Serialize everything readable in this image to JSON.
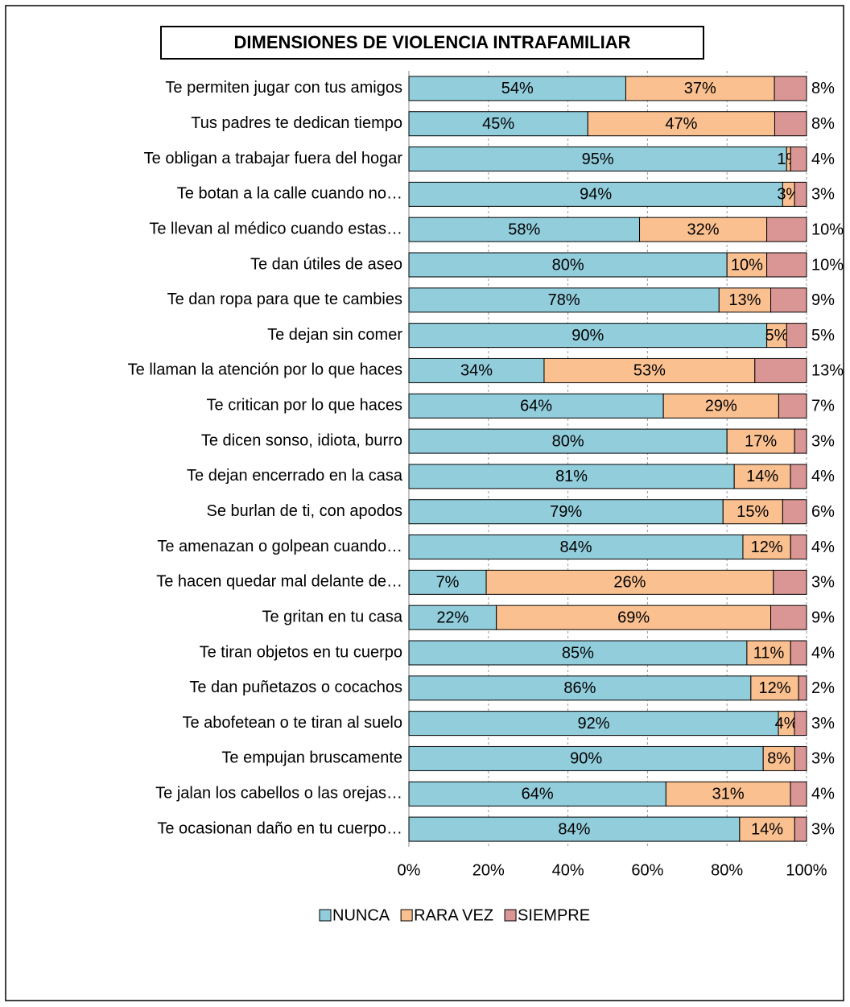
{
  "chart_data": {
    "type": "bar",
    "orientation": "horizontal",
    "stacking": "percent",
    "title": "DIMENSIONES DE VIOLENCIA INTRAFAMILIAR",
    "categories": [
      "Te permiten jugar con tus amigos",
      "Tus padres te dedican tiempo",
      "Te obligan a trabajar fuera del hogar",
      "Te botan a la calle cuando no…",
      "Te llevan al médico cuando estas…",
      "Te dan útiles de aseo",
      "Te dan ropa para que te cambies",
      "Te dejan sin comer",
      "Te llaman la atención por lo que haces",
      "Te critican por lo que haces",
      "Te dicen sonso, idiota, burro",
      "Te dejan encerrado en la casa",
      "Se burlan de ti, con apodos",
      "Te amenazan o golpean cuando…",
      "Te hacen quedar mal delante de…",
      "Te gritan en tu casa",
      "Te tiran objetos en tu cuerpo",
      "Te dan puñetazos o cocachos",
      "Te abofetean o te tiran al suelo",
      "Te empujan bruscamente",
      "Te jalan los cabellos o las orejas…",
      "Te ocasionan daño en tu cuerpo…"
    ],
    "series": [
      {
        "name": "NUNCA",
        "color": "#92cddc",
        "values": [
          54,
          45,
          95,
          94,
          58,
          80,
          78,
          90,
          34,
          64,
          80,
          81,
          79,
          84,
          7,
          22,
          85,
          86,
          92,
          90,
          64,
          84
        ],
        "value_labels": [
          "54%",
          "45%",
          "95%",
          "94%",
          "58%",
          "80%",
          "78%",
          "90%",
          "34%",
          "64%",
          "80%",
          "81%",
          "79%",
          "84%",
          "7%",
          "22%",
          "85%",
          "86%",
          "92%",
          "90%",
          "64%",
          "84%"
        ]
      },
      {
        "name": "RARA VEZ",
        "color": "#fac090",
        "values": [
          37,
          47,
          1,
          3,
          32,
          10,
          13,
          5,
          53,
          29,
          17,
          14,
          15,
          12,
          26,
          69,
          11,
          12,
          4,
          8,
          31,
          14
        ],
        "value_labels": [
          "37%",
          "47%",
          "1%",
          "3%",
          "32%",
          "10%",
          "13%",
          "5%",
          "53%",
          "29%",
          "17%",
          "14%",
          "15%",
          "12%",
          "26%",
          "69%",
          "11%",
          "12%",
          "4%",
          "8%",
          "31%",
          "14%"
        ]
      },
      {
        "name": "SIEMPRE",
        "color": "#d99694",
        "values": [
          8,
          8,
          4,
          3,
          10,
          10,
          9,
          5,
          13,
          7,
          3,
          4,
          6,
          4,
          3,
          9,
          4,
          2,
          3,
          3,
          4,
          3
        ],
        "value_labels": [
          "8%",
          "8%",
          "4%",
          "3%",
          "10%",
          "10%",
          "9%",
          "5%",
          "13%",
          "7%",
          "3%",
          "4%",
          "6%",
          "4%",
          "3%",
          "9%",
          "4%",
          "2%",
          "3%",
          "3%",
          "4%",
          "3%"
        ]
      }
    ],
    "xlim": [
      0,
      100
    ],
    "xticks": [
      {
        "value": 0,
        "label": "0%"
      },
      {
        "value": 20,
        "label": "20%"
      },
      {
        "value": 40,
        "label": "40%"
      },
      {
        "value": 60,
        "label": "60%"
      },
      {
        "value": 80,
        "label": "80%"
      },
      {
        "value": 100,
        "label": "100%"
      }
    ],
    "grid": true,
    "legend": "bottom"
  }
}
